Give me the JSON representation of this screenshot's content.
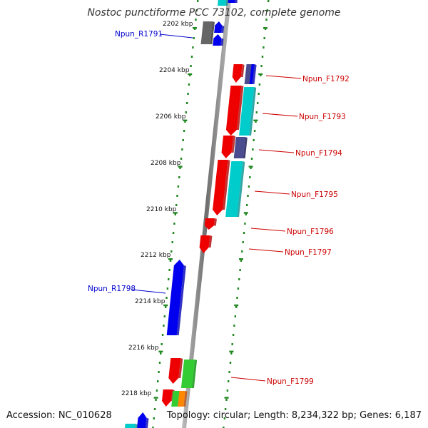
{
  "title": "Nostoc punctiforme PCC 73102, complete genome",
  "footer": {
    "accession": "Accession: NC_010628",
    "summary": "Topology: circular; Length: 8,234,322 bp; Genes: 6,187"
  },
  "ticks": [
    "2202 kbp",
    "2204 kbp",
    "2206 kbp",
    "2208 kbp",
    "2210 kbp",
    "2212 kbp",
    "2214 kbp",
    "2216 kbp",
    "2218 kbp"
  ],
  "gene_labels": [
    {
      "text": "Npun_R1791",
      "strand": "reverse",
      "color": "#0000cc"
    },
    {
      "text": "Npun_F1792",
      "strand": "forward",
      "color": "#cc0000"
    },
    {
      "text": "Npun_F1793",
      "strand": "forward",
      "color": "#cc0000"
    },
    {
      "text": "Npun_F1794",
      "strand": "forward",
      "color": "#cc0000"
    },
    {
      "text": "Npun_F1795",
      "strand": "forward",
      "color": "#cc0000"
    },
    {
      "text": "Npun_F1796",
      "strand": "forward",
      "color": "#cc0000"
    },
    {
      "text": "Npun_F1797",
      "strand": "forward",
      "color": "#cc0000"
    },
    {
      "text": "Npun_R1798",
      "strand": "reverse",
      "color": "#0000cc"
    },
    {
      "text": "Npun_F1799",
      "strand": "forward",
      "color": "#cc0000"
    }
  ],
  "colors": {
    "forward_gene": "#ee0000",
    "reverse_gene": "#0000ee",
    "cyan_track": "#00cccc",
    "purple_track": "#4b4b8f",
    "gray_track": "#666666",
    "green_track": "#33cc33",
    "orange_track": "#ff8800",
    "dots": "#228822",
    "axis": "#888888"
  }
}
